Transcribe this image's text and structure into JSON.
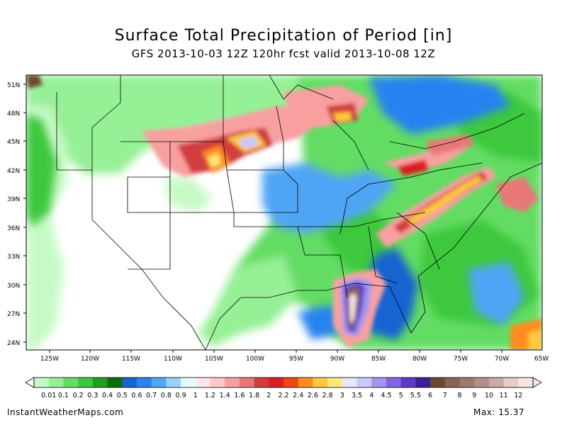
{
  "header": {
    "title": "Surface Total Precipitation of Period [in]",
    "subtitle": "GFS 2013-10-03 12Z 120hr fcst valid 2013-10-08 12Z"
  },
  "map": {
    "lat_labels": [
      "51N",
      "48N",
      "45N",
      "42N",
      "39N",
      "36N",
      "33N",
      "30N",
      "27N",
      "24N"
    ],
    "lon_labels": [
      "125W",
      "120W",
      "115W",
      "110W",
      "105W",
      "100W",
      "95W",
      "90W",
      "85W",
      "80W",
      "75W",
      "70W",
      "65W"
    ]
  },
  "colorbar": {
    "levels": [
      "0.01",
      "0.1",
      "0.2",
      "0.3",
      "0.4",
      "0.5",
      "0.6",
      "0.7",
      "0.8",
      "0.9",
      "1",
      "1.2",
      "1.4",
      "1.6",
      "1.8",
      "2",
      "2.2",
      "2.4",
      "2.6",
      "2.8",
      "3",
      "3.5",
      "4",
      "4.5",
      "5",
      "5.5",
      "6",
      "7",
      "8",
      "9",
      "10",
      "11",
      "12"
    ],
    "colors": [
      "#c8fac8",
      "#96f096",
      "#64dc64",
      "#3cc83c",
      "#1ea01e",
      "#0a6e0a",
      "#1464d2",
      "#2882f0",
      "#50a5f5",
      "#96d2fa",
      "#e1ffff",
      "#ffe8e8",
      "#ffc8c8",
      "#f8a0a0",
      "#e87878",
      "#d23c3c",
      "#dc1e1e",
      "#f04614",
      "#ff8c1e",
      "#ffc83c",
      "#ffe678",
      "#e6e6ff",
      "#c8c8ff",
      "#a096f0",
      "#8264e6",
      "#5a3cc8",
      "#3c1e96",
      "#6e4632",
      "#8c6450",
      "#a0786e",
      "#b48c8c",
      "#c8aaaa",
      "#e6cdc8",
      "#f5e6e1"
    ]
  },
  "footer": {
    "source": "InstantWeatherMaps.com",
    "max_label": "Max:",
    "max_value": "15.37"
  }
}
